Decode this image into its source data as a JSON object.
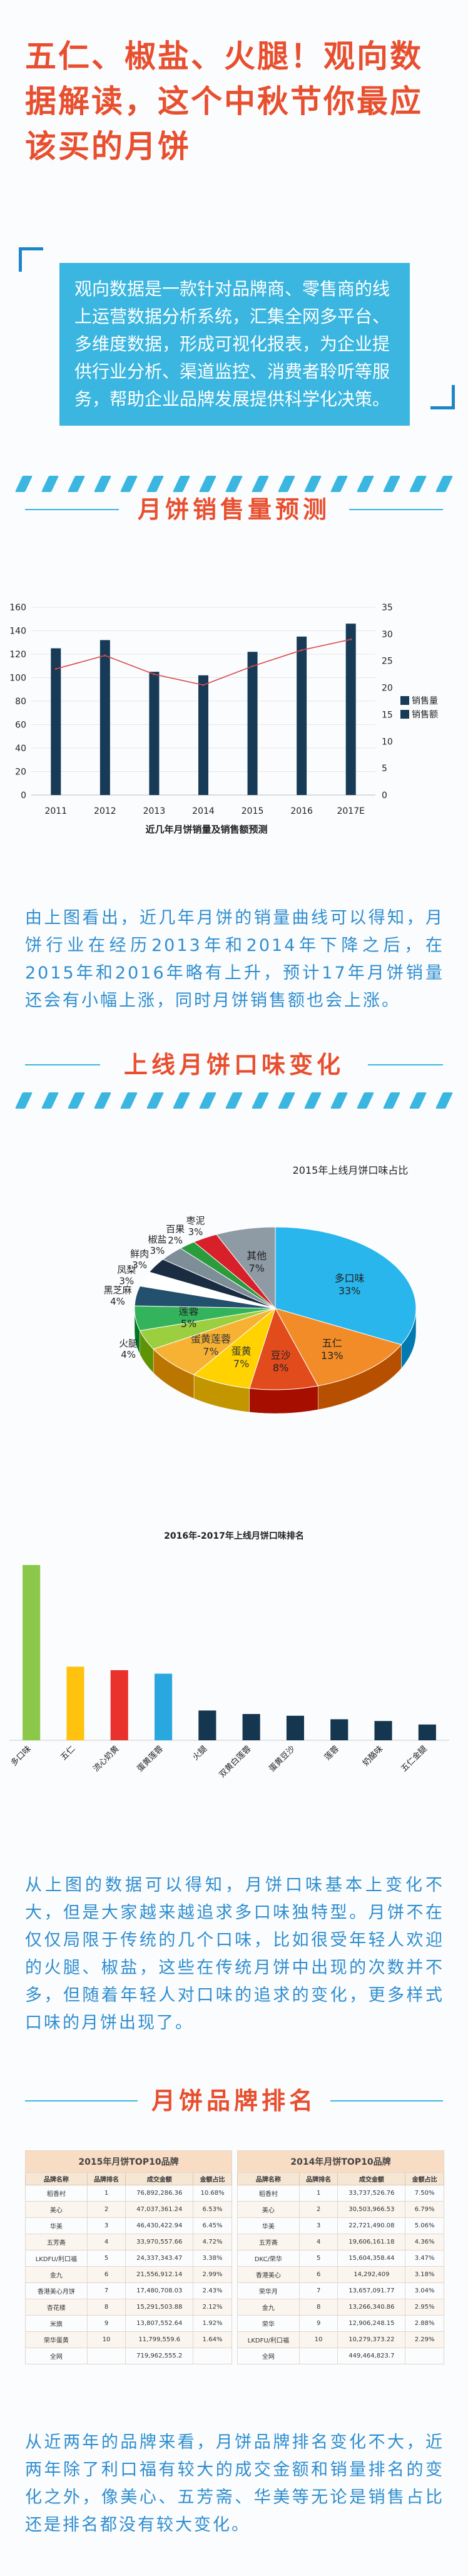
{
  "hero": {
    "title": "五仁、椒盐、火腿！观向数据解读，这个中秋节你最应该买的月饼"
  },
  "intro": {
    "text": "观向数据是一款针对品牌商、零售商的线上运营数据分析系统，汇集全网多平台、多维度数据，形成可视化报表，为企业提供行业分析、渠道监控、消费者聆听等服务，帮助企业品牌发展提供科学化决策。"
  },
  "sections": {
    "forecast_title": "月饼销售量预测",
    "flavor_title": "上线月饼口味变化",
    "brand_title": "月饼品牌排名"
  },
  "paragraphs": {
    "p1": "由上图看出，近几年月饼的销量曲线可以得知，月饼行业在经历2013年和2014年下降之后，在2015年和2016年略有上升，预计17年月饼销量还会有小幅上涨，同时月饼销售额也会上涨。",
    "p2": "从上图的数据可以得知，月饼口味基本上变化不大，但是大家越来越追求多口味独特型。月饼不在仅仅局限于传统的几个口味，比如很受年轻人欢迎的火腿、椒盐，这些在传统月饼中出现的次数并不多，但随着年轻人对口味的追求的变化，更多样式口味的月饼出现了。",
    "p3": "从近两年的品牌来看，月饼品牌排名变化不大，近两年除了利口福有较大的成交金额和销量排名的变化之外，像美心、五芳斋、华美等无论是销售占比还是排名都没有较大变化。"
  },
  "chart_data": [
    {
      "type": "bar",
      "title": "近几年月饼销量及销售额预测",
      "categories": [
        "2011",
        "2012",
        "2013",
        "2014",
        "2015",
        "2016",
        "2017E"
      ],
      "series": [
        {
          "name": "销售量",
          "type": "bar",
          "axis": "left",
          "color": "#173a56",
          "values": [
            125,
            132,
            105,
            102,
            122,
            135,
            146
          ]
        },
        {
          "name": "销售额",
          "type": "line",
          "axis": "right",
          "color": "#d94a4a",
          "values": [
            23.5,
            26,
            22.5,
            20.5,
            24,
            27,
            29
          ]
        }
      ],
      "y_left": {
        "ticks": [
          0,
          20,
          40,
          60,
          80,
          100,
          120,
          140,
          160
        ],
        "range": [
          0,
          160
        ]
      },
      "y_right": {
        "ticks": [
          0,
          5,
          10,
          15,
          20,
          25,
          30,
          35
        ],
        "range": [
          0,
          35
        ]
      },
      "grid": true,
      "legend": "right"
    },
    {
      "type": "pie",
      "title": "2015年上线月饼口味占比",
      "slices": [
        {
          "label": "多口味",
          "value": 33,
          "color": "#29b6ec"
        },
        {
          "label": "五仁",
          "value": 13,
          "color": "#f28c28"
        },
        {
          "label": "豆沙",
          "value": 8,
          "color": "#e24b1c"
        },
        {
          "label": "蛋黄",
          "value": 7,
          "color": "#ffd200"
        },
        {
          "label": "蛋黄莲蓉",
          "value": 7,
          "color": "#f7b234"
        },
        {
          "label": "火腿",
          "value": 4,
          "color": "#9bcf3f"
        },
        {
          "label": "莲蓉",
          "value": 5,
          "color": "#33b35c"
        },
        {
          "label": "黑芝麻",
          "value": 4,
          "color": "#23506d"
        },
        {
          "label": "凤梨",
          "value": 3,
          "color": "#ffffff"
        },
        {
          "label": "鲜肉",
          "value": 3,
          "color": "#1a2c42"
        },
        {
          "label": "椒盐",
          "value": 3,
          "color": "#7e8e99"
        },
        {
          "label": "百果",
          "value": 2,
          "color": "#2a9c3c"
        },
        {
          "label": "枣泥",
          "value": 3,
          "color": "#d8202a"
        },
        {
          "label": "其他",
          "value": 7,
          "color": "#8e9aa4"
        }
      ]
    },
    {
      "type": "bar",
      "title": "2016年-2017年上线月饼口味排名",
      "categories": [
        "多口味",
        "五仁",
        "流心奶黄",
        "蛋黄莲蓉",
        "火腿",
        "双黄白莲蓉",
        "蛋黄豆沙",
        "莲蓉",
        "奶酪味",
        "五仁金腿"
      ],
      "values": [
        100,
        42,
        40,
        38,
        17,
        15,
        14,
        12,
        11,
        9
      ],
      "colors": [
        "#8bc84a",
        "#ffc20e",
        "#e9322c",
        "#29a8e0",
        "#15364f",
        "#15364f",
        "#15364f",
        "#15364f",
        "#15364f",
        "#15364f"
      ]
    },
    {
      "type": "table",
      "tables": [
        {
          "caption": "2015年月饼TOP10品牌",
          "headers": [
            "品牌名称",
            "品牌排名",
            "成交金额",
            "金额占比"
          ],
          "rows": [
            [
              "稻香村",
              "1",
              "76,892,286.36",
              "10.68%"
            ],
            [
              "美心",
              "2",
              "47,037,361.24",
              "6.53%"
            ],
            [
              "华美",
              "3",
              "46,430,422.94",
              "6.45%"
            ],
            [
              "五芳斋",
              "4",
              "33,970,557.66",
              "4.72%"
            ],
            [
              "LKDFU/利口福",
              "5",
              "24,337,343.47",
              "3.38%"
            ],
            [
              "金九",
              "6",
              "21,556,912.14",
              "2.99%"
            ],
            [
              "香港美心月饼",
              "7",
              "17,480,708.03",
              "2.43%"
            ],
            [
              "杏花楼",
              "8",
              "15,291,503.88",
              "2.12%"
            ],
            [
              "米旗",
              "9",
              "13,807,552.64",
              "1.92%"
            ],
            [
              "荣华蛋黄",
              "10",
              "11,799,559.6",
              "1.64%"
            ],
            [
              "全网",
              "",
              "719,962,555.2",
              ""
            ]
          ]
        },
        {
          "caption": "2014年月饼TOP10品牌",
          "headers": [
            "品牌名称",
            "品牌排名",
            "成交金额",
            "金额占比"
          ],
          "rows": [
            [
              "稻香村",
              "1",
              "33,737,526.76",
              "7.50%"
            ],
            [
              "美心",
              "2",
              "30,503,966.53",
              "6.79%"
            ],
            [
              "华美",
              "3",
              "22,721,490.08",
              "5.06%"
            ],
            [
              "五芳斋",
              "4",
              "19,606,161.18",
              "4.36%"
            ],
            [
              "DKC/荣华",
              "5",
              "15,604,358.44",
              "3.47%"
            ],
            [
              "香港美心",
              "6",
              "14,292,409",
              "3.18%"
            ],
            [
              "荣华月",
              "7",
              "13,657,091.77",
              "3.04%"
            ],
            [
              "金九",
              "8",
              "13,266,340.86",
              "2.95%"
            ],
            [
              "荣华",
              "9",
              "12,906,248.15",
              "2.88%"
            ],
            [
              "LKDFU/利口福",
              "10",
              "10,279,373.22",
              "2.29%"
            ],
            [
              "全网",
              "",
              "449,464,823.7",
              ""
            ]
          ]
        }
      ]
    }
  ]
}
